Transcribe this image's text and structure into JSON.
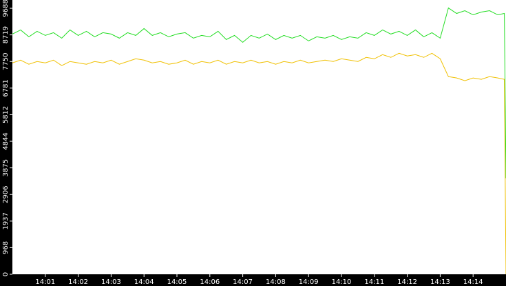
{
  "chart_data": {
    "type": "line",
    "x": [
      840,
      840.25,
      840.5,
      840.75,
      841,
      841.25,
      841.5,
      841.75,
      842,
      842.25,
      842.5,
      842.75,
      843,
      843.25,
      843.5,
      843.75,
      844,
      844.25,
      844.5,
      844.75,
      845,
      845.25,
      845.5,
      845.75,
      846,
      846.25,
      846.5,
      846.75,
      847,
      847.25,
      847.5,
      847.75,
      848,
      848.25,
      848.5,
      848.75,
      849,
      849.25,
      849.5,
      849.75,
      850,
      850.25,
      850.5,
      850.75,
      851,
      851.25,
      851.5,
      851.75,
      852,
      852.25,
      852.5,
      852.75,
      853,
      853.25,
      853.5,
      853.75,
      854,
      854.25,
      854.5,
      854.75,
      854.95,
      855
    ],
    "series": [
      {
        "color": "#22dd22",
        "values": [
          8750,
          8900,
          8650,
          8850,
          8700,
          8800,
          8600,
          8900,
          8700,
          8850,
          8650,
          8800,
          8750,
          8600,
          8800,
          8700,
          8950,
          8700,
          8800,
          8650,
          8750,
          8800,
          8600,
          8700,
          8650,
          8850,
          8550,
          8700,
          8450,
          8700,
          8600,
          8750,
          8550,
          8700,
          8600,
          8700,
          8500,
          8650,
          8600,
          8700,
          8550,
          8650,
          8600,
          8800,
          8700,
          8900,
          8750,
          8850,
          8700,
          8900,
          8650,
          8800,
          8600,
          9700,
          9500,
          9600,
          9450,
          9550,
          9600,
          9450,
          9500,
          3500
        ]
      },
      {
        "color": "#f0c000",
        "values": [
          7700,
          7800,
          7650,
          7750,
          7700,
          7800,
          7600,
          7750,
          7700,
          7650,
          7750,
          7700,
          7800,
          7650,
          7750,
          7850,
          7800,
          7700,
          7750,
          7650,
          7700,
          7800,
          7650,
          7750,
          7700,
          7800,
          7650,
          7750,
          7700,
          7800,
          7700,
          7750,
          7650,
          7750,
          7700,
          7800,
          7700,
          7750,
          7800,
          7750,
          7850,
          7800,
          7750,
          7900,
          7850,
          8000,
          7900,
          8050,
          7950,
          8000,
          7900,
          8050,
          7850,
          7200,
          7150,
          7050,
          7150,
          7100,
          7200,
          7150,
          7100,
          0
        ]
      }
    ],
    "xlim": [
      840,
      855
    ],
    "xticks": [
      {
        "value": 841,
        "label": "14:01"
      },
      {
        "value": 842,
        "label": "14:02"
      },
      {
        "value": 843,
        "label": "14:03"
      },
      {
        "value": 844,
        "label": "14:04"
      },
      {
        "value": 845,
        "label": "14:05"
      },
      {
        "value": 846,
        "label": "14:06"
      },
      {
        "value": 847,
        "label": "14:07"
      },
      {
        "value": 848,
        "label": "14:08"
      },
      {
        "value": 849,
        "label": "14:09"
      },
      {
        "value": 850,
        "label": "14:10"
      },
      {
        "value": 851,
        "label": "14:11"
      },
      {
        "value": 852,
        "label": "14:12"
      },
      {
        "value": 853,
        "label": "14:13"
      },
      {
        "value": 854,
        "label": "14:14"
      }
    ],
    "ylim": [
      0,
      9990
    ],
    "yticks": [
      0,
      968,
      1937,
      2906,
      3875,
      4844,
      5812,
      6781,
      7750,
      8719,
      9688
    ]
  }
}
